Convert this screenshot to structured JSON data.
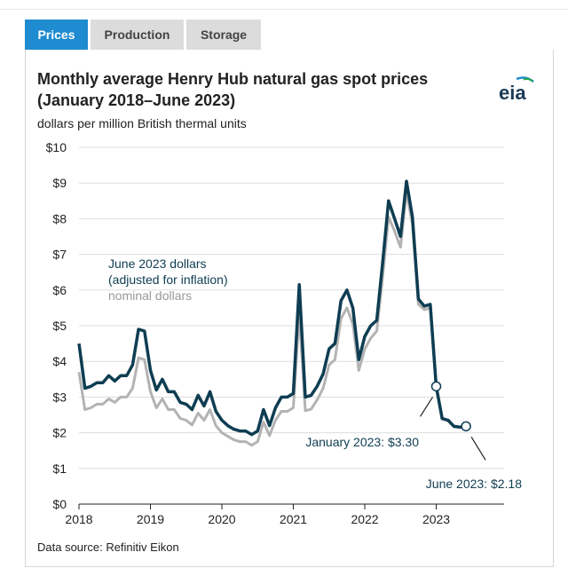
{
  "tabs": [
    {
      "label": "Prices",
      "active": true
    },
    {
      "label": "Production",
      "active": false
    },
    {
      "label": "Storage",
      "active": false
    }
  ],
  "logo_text": "eia",
  "chart_data": {
    "type": "line",
    "title": "Monthly average Henry Hub natural gas spot prices (January 2018–June 2023)",
    "ylabel": "dollars per million British thermal units",
    "source": "Data source: Refinitiv Eikon",
    "x_tick_labels": [
      "2018",
      "2019",
      "2020",
      "2021",
      "2022",
      "2023"
    ],
    "y_tick_labels": [
      "$0",
      "$1",
      "$2",
      "$3",
      "$4",
      "$5",
      "$6",
      "$7",
      "$8",
      "$9",
      "$10"
    ],
    "xlim": [
      2018,
      2023.95
    ],
    "ylim": [
      0,
      10
    ],
    "grid": true,
    "colors": {
      "real": "#0e3d52",
      "nominal": "#b3b3b3",
      "grid": "#dedede"
    },
    "x": [
      2018.0,
      2018.083,
      2018.167,
      2018.25,
      2018.333,
      2018.417,
      2018.5,
      2018.583,
      2018.667,
      2018.75,
      2018.833,
      2018.917,
      2019.0,
      2019.083,
      2019.167,
      2019.25,
      2019.333,
      2019.417,
      2019.5,
      2019.583,
      2019.667,
      2019.75,
      2019.833,
      2019.917,
      2020.0,
      2020.083,
      2020.167,
      2020.25,
      2020.333,
      2020.417,
      2020.5,
      2020.583,
      2020.667,
      2020.75,
      2020.833,
      2020.917,
      2021.0,
      2021.083,
      2021.167,
      2021.25,
      2021.333,
      2021.417,
      2021.5,
      2021.583,
      2021.667,
      2021.75,
      2021.833,
      2021.917,
      2022.0,
      2022.083,
      2022.167,
      2022.25,
      2022.333,
      2022.417,
      2022.5,
      2022.583,
      2022.667,
      2022.75,
      2022.833,
      2022.917,
      2023.0,
      2023.083,
      2023.167,
      2023.25,
      2023.333,
      2023.417
    ],
    "series": [
      {
        "name": "June 2023 dollars\n(adjusted for inflation)",
        "key": "real",
        "values": [
          4.5,
          3.25,
          3.3,
          3.4,
          3.4,
          3.6,
          3.45,
          3.6,
          3.6,
          3.9,
          4.9,
          4.85,
          3.75,
          3.2,
          3.5,
          3.15,
          3.15,
          2.85,
          2.8,
          2.65,
          3.05,
          2.75,
          3.15,
          2.6,
          2.35,
          2.2,
          2.1,
          2.05,
          2.05,
          1.95,
          2.05,
          2.65,
          2.2,
          2.7,
          3.0,
          3.0,
          3.1,
          6.15,
          3.0,
          3.05,
          3.3,
          3.65,
          4.35,
          4.5,
          5.7,
          6.0,
          5.5,
          4.05,
          4.7,
          5.0,
          5.15,
          6.75,
          8.5,
          8.0,
          7.5,
          9.05,
          8.05,
          5.75,
          5.55,
          5.6,
          3.3,
          2.4,
          2.35,
          2.18,
          2.16,
          2.18
        ]
      },
      {
        "name": "nominal dollars",
        "key": "nominal",
        "values": [
          3.7,
          2.65,
          2.7,
          2.8,
          2.8,
          2.95,
          2.85,
          3.0,
          3.0,
          3.25,
          4.1,
          4.05,
          3.15,
          2.7,
          2.95,
          2.65,
          2.65,
          2.4,
          2.35,
          2.22,
          2.55,
          2.35,
          2.65,
          2.2,
          2.0,
          1.9,
          1.8,
          1.75,
          1.75,
          1.65,
          1.75,
          2.3,
          1.92,
          2.35,
          2.6,
          2.6,
          2.7,
          5.35,
          2.62,
          2.66,
          2.92,
          3.25,
          3.9,
          4.05,
          5.2,
          5.5,
          5.05,
          3.75,
          4.35,
          4.65,
          4.85,
          6.35,
          8.05,
          7.65,
          7.2,
          8.75,
          7.85,
          5.6,
          5.45,
          5.5,
          3.27,
          2.38,
          2.33,
          2.17,
          2.15,
          2.18
        ]
      }
    ],
    "annotations": [
      {
        "text": "January 2023: $3.30",
        "x": 2023.0,
        "y": 3.3
      },
      {
        "text": "June 2023: $2.18",
        "x": 2023.417,
        "y": 2.18
      }
    ]
  }
}
